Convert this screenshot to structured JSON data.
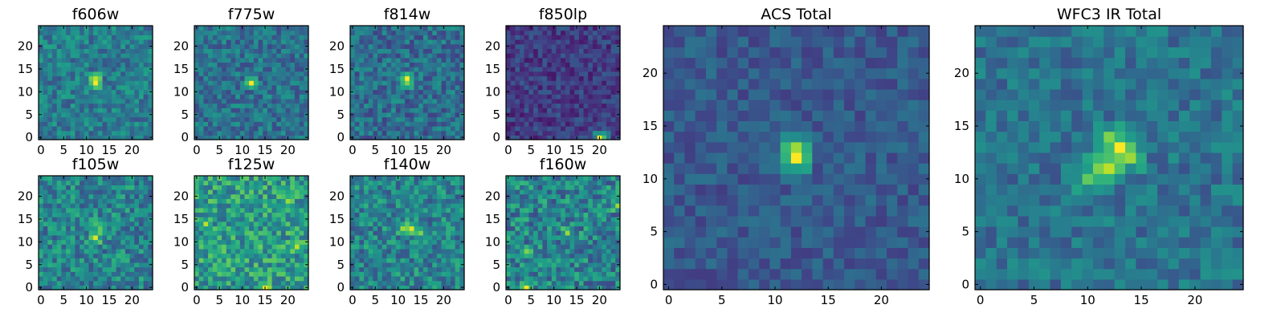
{
  "figure": {
    "description_panels": 10,
    "colormap": "viridis",
    "cmap_stops": [
      "#440154",
      "#482878",
      "#3e4989",
      "#31688e",
      "#26828e",
      "#1f9e89",
      "#35b779",
      "#6ece58",
      "#b5de2b",
      "#fde725"
    ]
  },
  "chart_data": [
    {
      "type": "heatmap",
      "title": "f606w",
      "grid": [
        25,
        25
      ],
      "x_ticks": [
        0,
        5,
        10,
        15,
        20
      ],
      "y_ticks": [
        0,
        5,
        10,
        15,
        20
      ],
      "xlim": [
        0,
        24
      ],
      "ylim": [
        0,
        24
      ],
      "base_level": 0.42,
      "noise": 0.16,
      "seed": 11,
      "peaks": [
        {
          "x": 12,
          "y": 12,
          "value": 1.0
        },
        {
          "x": 12,
          "y": 13,
          "value": 0.9
        }
      ]
    },
    {
      "type": "heatmap",
      "title": "f775w",
      "grid": [
        25,
        25
      ],
      "x_ticks": [
        0,
        5,
        10,
        15,
        20
      ],
      "y_ticks": [
        0,
        5,
        10,
        15,
        20
      ],
      "xlim": [
        0,
        24
      ],
      "ylim": [
        0,
        24
      ],
      "base_level": 0.38,
      "noise": 0.16,
      "seed": 23,
      "peaks": [
        {
          "x": 12,
          "y": 12,
          "value": 1.0
        }
      ]
    },
    {
      "type": "heatmap",
      "title": "f814w",
      "grid": [
        25,
        25
      ],
      "x_ticks": [
        0,
        5,
        10,
        15,
        20
      ],
      "y_ticks": [
        0,
        5,
        10,
        15,
        20
      ],
      "xlim": [
        0,
        24
      ],
      "ylim": [
        0,
        24
      ],
      "base_level": 0.36,
      "noise": 0.17,
      "seed": 37,
      "peaks": [
        {
          "x": 12,
          "y": 13,
          "value": 1.0
        },
        {
          "x": 12,
          "y": 12,
          "value": 0.8
        },
        {
          "x": 11,
          "y": 12,
          "value": 0.6
        }
      ]
    },
    {
      "type": "heatmap",
      "title": "f850lp",
      "grid": [
        25,
        25
      ],
      "x_ticks": [
        0,
        5,
        10,
        15,
        20
      ],
      "y_ticks": [
        0,
        5,
        10,
        15,
        20
      ],
      "xlim": [
        0,
        24
      ],
      "ylim": [
        0,
        24
      ],
      "base_level": 0.18,
      "noise": 0.12,
      "seed": 41,
      "peaks": [
        {
          "x": 20,
          "y": 0,
          "value": 1.0
        },
        {
          "x": 21,
          "y": 0,
          "value": 0.7
        }
      ]
    },
    {
      "type": "heatmap",
      "title": "f105w",
      "grid": [
        25,
        25
      ],
      "x_ticks": [
        0,
        5,
        10,
        15,
        20
      ],
      "y_ticks": [
        0,
        5,
        10,
        15,
        20
      ],
      "xlim": [
        0,
        24
      ],
      "ylim": [
        0,
        24
      ],
      "base_level": 0.45,
      "noise": 0.2,
      "seed": 53,
      "peaks": [
        {
          "x": 12,
          "y": 11,
          "value": 0.95
        },
        {
          "x": 13,
          "y": 13,
          "value": 0.75
        },
        {
          "x": 12,
          "y": 14,
          "value": 0.7
        }
      ]
    },
    {
      "type": "heatmap",
      "title": "f125w",
      "grid": [
        25,
        25
      ],
      "x_ticks": [
        0,
        5,
        10,
        15,
        20
      ],
      "y_ticks": [
        0,
        5,
        10,
        15,
        20
      ],
      "xlim": [
        0,
        24
      ],
      "ylim": [
        0,
        24
      ],
      "base_level": 0.55,
      "noise": 0.22,
      "seed": 67,
      "peaks": [
        {
          "x": 15,
          "y": 0,
          "value": 1.0
        },
        {
          "x": 2,
          "y": 14,
          "value": 0.9
        },
        {
          "x": 22,
          "y": 9,
          "value": 0.9
        },
        {
          "x": 20,
          "y": 19,
          "value": 0.85
        }
      ]
    },
    {
      "type": "heatmap",
      "title": "f140w",
      "grid": [
        25,
        25
      ],
      "x_ticks": [
        0,
        5,
        10,
        15,
        20
      ],
      "y_ticks": [
        0,
        5,
        10,
        15,
        20
      ],
      "xlim": [
        0,
        24
      ],
      "ylim": [
        0,
        24
      ],
      "base_level": 0.45,
      "noise": 0.2,
      "seed": 79,
      "peaks": [
        {
          "x": 13,
          "y": 13,
          "value": 0.95
        },
        {
          "x": 11,
          "y": 13,
          "value": 0.85
        },
        {
          "x": 15,
          "y": 12,
          "value": 0.8
        }
      ]
    },
    {
      "type": "heatmap",
      "title": "f160w",
      "grid": [
        25,
        25
      ],
      "x_ticks": [
        0,
        5,
        10,
        15,
        20
      ],
      "y_ticks": [
        0,
        5,
        10,
        15,
        20
      ],
      "xlim": [
        0,
        24
      ],
      "ylim": [
        0,
        24
      ],
      "base_level": 0.45,
      "noise": 0.22,
      "seed": 83,
      "peaks": [
        {
          "x": 4,
          "y": 0,
          "value": 1.0
        },
        {
          "x": 13,
          "y": 12,
          "value": 0.85
        },
        {
          "x": 24,
          "y": 18,
          "value": 0.85
        },
        {
          "x": 4,
          "y": 8,
          "value": 0.8
        }
      ]
    },
    {
      "type": "heatmap",
      "title": "ACS Total",
      "grid": [
        25,
        25
      ],
      "x_ticks": [
        0,
        5,
        10,
        15,
        20
      ],
      "y_ticks": [
        0,
        5,
        10,
        15,
        20
      ],
      "xlim": [
        0,
        24
      ],
      "ylim": [
        0,
        24
      ],
      "base_level": 0.28,
      "noise": 0.1,
      "seed": 97,
      "peaks": [
        {
          "x": 12,
          "y": 12,
          "value": 1.0
        },
        {
          "x": 12,
          "y": 13,
          "value": 0.85
        },
        {
          "x": 12,
          "y": 11,
          "value": 0.55
        },
        {
          "x": 11,
          "y": 12,
          "value": 0.5
        }
      ]
    },
    {
      "type": "heatmap",
      "title": "WFC3 IR Total",
      "grid": [
        25,
        25
      ],
      "x_ticks": [
        0,
        5,
        10,
        15,
        20
      ],
      "y_ticks": [
        0,
        5,
        10,
        15,
        20
      ],
      "xlim": [
        0,
        24
      ],
      "ylim": [
        0,
        24
      ],
      "base_level": 0.38,
      "noise": 0.13,
      "seed": 103,
      "peaks": [
        {
          "x": 13,
          "y": 13,
          "value": 1.0
        },
        {
          "x": 12,
          "y": 11,
          "value": 0.9
        },
        {
          "x": 14,
          "y": 12,
          "value": 0.85
        },
        {
          "x": 12,
          "y": 14,
          "value": 0.8
        },
        {
          "x": 11,
          "y": 11,
          "value": 0.8
        },
        {
          "x": 10,
          "y": 10,
          "value": 0.75
        }
      ]
    }
  ]
}
